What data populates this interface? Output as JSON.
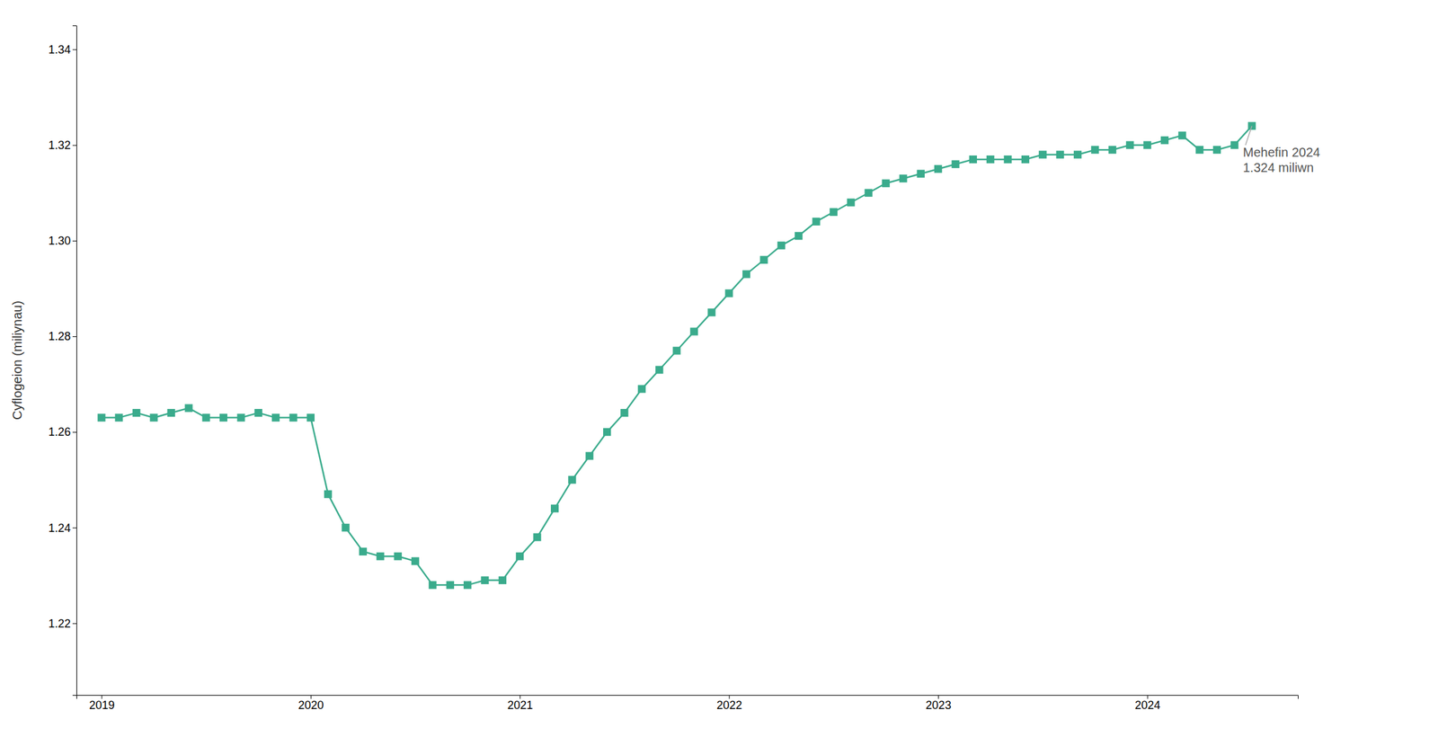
{
  "chart_data": {
    "type": "line",
    "ylabel": "Cyflogeion (miliynau)",
    "color": "#3aab8c",
    "marker": "square",
    "grid": false,
    "xlim": [
      2018.88,
      2024.72
    ],
    "xticks": [
      2019,
      2020,
      2021,
      2022,
      2023,
      2024
    ],
    "ylim": [
      1.205,
      1.345
    ],
    "yticks": [
      1.22,
      1.24,
      1.26,
      1.28,
      {
        "value": 1.3,
        "label": "1.30"
      },
      1.32,
      1.34
    ],
    "annotations": [
      {
        "text": "Mehefin 2024\n1.324 miliwn",
        "x": 2024.5,
        "y": 1.324,
        "color": "#555555"
      }
    ],
    "x": [
      2019.0,
      2019.083,
      2019.167,
      2019.25,
      2019.333,
      2019.417,
      2019.5,
      2019.583,
      2019.667,
      2019.75,
      2019.833,
      2019.917,
      2020.0,
      2020.083,
      2020.167,
      2020.25,
      2020.333,
      2020.417,
      2020.5,
      2020.583,
      2020.667,
      2020.75,
      2020.833,
      2020.917,
      2021.0,
      2021.083,
      2021.167,
      2021.25,
      2021.333,
      2021.417,
      2021.5,
      2021.583,
      2021.667,
      2021.75,
      2021.833,
      2021.917,
      2022.0,
      2022.083,
      2022.167,
      2022.25,
      2022.333,
      2022.417,
      2022.5,
      2022.583,
      2022.667,
      2022.75,
      2022.833,
      2022.917,
      2023.0,
      2023.083,
      2023.167,
      2023.25,
      2023.333,
      2023.417,
      2023.5,
      2023.583,
      2023.667,
      2023.75,
      2023.833,
      2023.917,
      2024.0,
      2024.083,
      2024.167,
      2024.25,
      2024.333,
      2024.417,
      2024.5
    ],
    "values": [
      1.263,
      1.263,
      1.264,
      1.263,
      1.264,
      1.265,
      1.263,
      1.263,
      1.263,
      1.264,
      1.263,
      1.263,
      1.263,
      1.247,
      1.24,
      1.235,
      1.234,
      1.234,
      1.233,
      1.228,
      1.228,
      1.228,
      1.229,
      1.229,
      1.234,
      1.238,
      1.244,
      1.25,
      1.255,
      1.26,
      1.264,
      1.269,
      1.273,
      1.277,
      1.281,
      1.285,
      1.289,
      1.293,
      1.296,
      1.299,
      1.301,
      1.304,
      1.306,
      1.308,
      1.31,
      1.312,
      1.313,
      1.314,
      1.315,
      1.316,
      1.317,
      1.317,
      1.317,
      1.317,
      1.318,
      1.318,
      1.318,
      1.319,
      1.319,
      1.32,
      1.32,
      1.321,
      1.322,
      1.319,
      1.319,
      1.32,
      1.324
    ]
  }
}
